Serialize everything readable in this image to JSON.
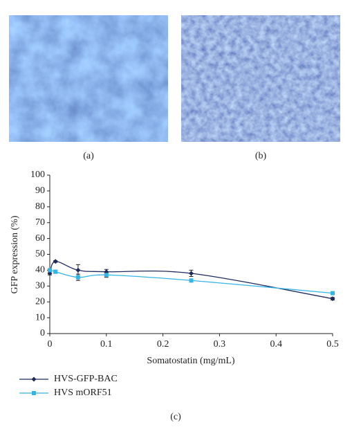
{
  "panels": [
    "(a)",
    "(b)"
  ],
  "chart_data": {
    "type": "line",
    "caption": "(c)",
    "x_label": "Somatostatin (mg/mL)",
    "y_label": "GFP expression (%)",
    "x": [
      0,
      0.01,
      0.05,
      0.1,
      0.25,
      0.5
    ],
    "series": [
      {
        "name": "HVS-GFP-BAC",
        "color": "#1f2a5c",
        "marker": "diamond",
        "values": [
          38,
          45.5,
          40,
          39,
          38,
          22
        ],
        "errors": [
          1,
          0.5,
          3.5,
          1.5,
          2,
          0.8
        ]
      },
      {
        "name": "HVS mORF51",
        "color": "#33b5e5",
        "marker": "square",
        "values": [
          40,
          39,
          35.5,
          37,
          33.5,
          25.5
        ],
        "errors": [
          1,
          1,
          2,
          1.5,
          1,
          0.5
        ]
      }
    ],
    "xlim": [
      0,
      0.5
    ],
    "xticks": [
      0,
      0.1,
      0.2,
      0.3,
      0.4,
      0.5
    ],
    "ylim": [
      0,
      100
    ],
    "yticks": [
      0,
      10,
      20,
      30,
      40,
      50,
      60,
      70,
      80,
      90,
      100
    ],
    "grid": false,
    "smooth": true
  }
}
